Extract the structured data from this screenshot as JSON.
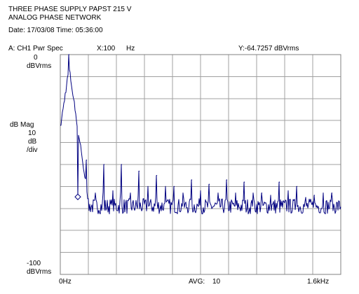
{
  "header": {
    "title_line1": "THREE PHASE SUPPLY PAPST 215 V",
    "title_line2": "ANALOG PHASE NETWORK",
    "date_time": "Date: 17/03/08   Time: 05:36:00"
  },
  "trace_bar": {
    "trace": "A:  CH1 Pwr Spec",
    "x_readout": "X:100",
    "x_unit": "Hz",
    "y_readout": "Y:-64.7257 dBVrms"
  },
  "y_axis": {
    "top_value": "0",
    "top_unit": "dBVrms",
    "quantity": "dB Mag",
    "scale_value": "10",
    "scale_unit": "dB",
    "scale_per": "/div",
    "bottom_value": "-100",
    "bottom_unit": "dBVrms"
  },
  "x_axis": {
    "start_label": "0Hz",
    "avg_label": "AVG:",
    "avg_value": "10",
    "end_label": "1.6kHz"
  },
  "colors": {
    "trace": "#000080",
    "grid": "#a0a0a0",
    "frame": "#808080",
    "text": "#000000"
  },
  "chart_data": {
    "type": "line",
    "xlim": [
      0,
      1600
    ],
    "ylim": [
      -100,
      0
    ],
    "x_unit": "Hz",
    "y_unit": "dBVrms",
    "y_per_div": 10,
    "x_divisions": 10,
    "y_divisions": 10,
    "grid": true,
    "noise_floor_db": -69,
    "marker": {
      "x": 100,
      "y": -64.7257
    },
    "peaks": [
      {
        "x": 50,
        "y": 0
      },
      {
        "x": 100,
        "y": -64.7
      },
      {
        "x": 150,
        "y": -48
      },
      {
        "x": 200,
        "y": -63
      },
      {
        "x": 250,
        "y": -50
      },
      {
        "x": 300,
        "y": -62
      },
      {
        "x": 350,
        "y": -50
      },
      {
        "x": 400,
        "y": -63
      },
      {
        "x": 450,
        "y": -53
      },
      {
        "x": 500,
        "y": -60
      },
      {
        "x": 550,
        "y": -55
      },
      {
        "x": 600,
        "y": -60
      },
      {
        "x": 650,
        "y": -60
      },
      {
        "x": 700,
        "y": -63
      },
      {
        "x": 750,
        "y": -57
      },
      {
        "x": 800,
        "y": -62
      },
      {
        "x": 850,
        "y": -59
      },
      {
        "x": 900,
        "y": -63
      },
      {
        "x": 950,
        "y": -57
      },
      {
        "x": 1000,
        "y": -63
      },
      {
        "x": 1050,
        "y": -58
      },
      {
        "x": 1100,
        "y": -63
      },
      {
        "x": 1150,
        "y": -63
      },
      {
        "x": 1200,
        "y": -64
      },
      {
        "x": 1250,
        "y": -58
      },
      {
        "x": 1300,
        "y": -62
      },
      {
        "x": 1350,
        "y": -60
      },
      {
        "x": 1400,
        "y": -65
      },
      {
        "x": 1450,
        "y": -64
      },
      {
        "x": 1500,
        "y": -63
      },
      {
        "x": 1550,
        "y": -63
      }
    ]
  }
}
